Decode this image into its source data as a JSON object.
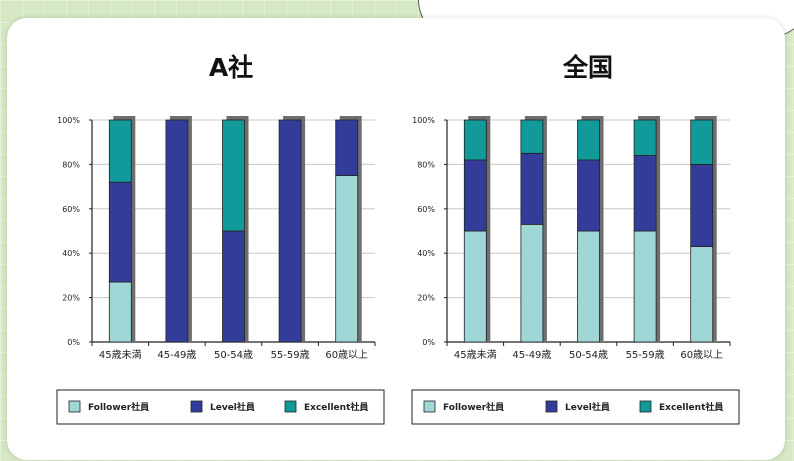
{
  "colors": {
    "follower": "#9fd7d7",
    "level": "#333d99",
    "excellent": "#12999a"
  },
  "legend": [
    "Follower社員",
    "Level社員",
    "Excellent社員"
  ],
  "chart_data": [
    {
      "type": "bar",
      "stacked": true,
      "title": "A社",
      "categories": [
        "45歳未満",
        "45-49歳",
        "50-54歳",
        "55-59歳",
        "60歳以上"
      ],
      "yticks": [
        "0%",
        "20%",
        "40%",
        "60%",
        "80%",
        "100%"
      ],
      "ylim": [
        0,
        100
      ],
      "series": [
        {
          "name": "Follower社員",
          "values": [
            27,
            0,
            0,
            0,
            75
          ]
        },
        {
          "name": "Level社員",
          "values": [
            45,
            100,
            50,
            100,
            25
          ]
        },
        {
          "name": "Excellent社員",
          "values": [
            28,
            0,
            50,
            0,
            0
          ]
        }
      ],
      "legend_position": "bottom"
    },
    {
      "type": "bar",
      "stacked": true,
      "title": "全国",
      "categories": [
        "45歳未満",
        "45-49歳",
        "50-54歳",
        "55-59歳",
        "60歳以上"
      ],
      "yticks": [
        "0%",
        "20%",
        "40%",
        "60%",
        "80%",
        "100%"
      ],
      "ylim": [
        0,
        100
      ],
      "series": [
        {
          "name": "Follower社員",
          "values": [
            50,
            53,
            50,
            50,
            43
          ]
        },
        {
          "name": "Level社員",
          "values": [
            32,
            32,
            32,
            34,
            37
          ]
        },
        {
          "name": "Excellent社員",
          "values": [
            18,
            15,
            18,
            16,
            20
          ]
        }
      ],
      "legend_position": "bottom"
    }
  ]
}
